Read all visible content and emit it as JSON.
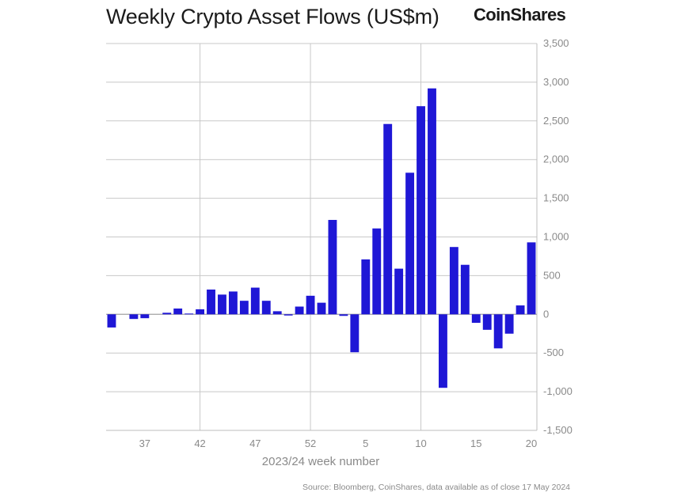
{
  "header": {
    "title": "Weekly Crypto Asset Flows (US$m)",
    "brand": "CoinShares"
  },
  "footer": {
    "source": "Source: Bloomberg, CoinShares, data available as of close 17 May 2024"
  },
  "chart_data": {
    "type": "bar",
    "title": "Weekly Crypto Asset Flows (US$m)",
    "xlabel": "2023/24 week number",
    "ylabel": "",
    "ylim": [
      -1500,
      3500
    ],
    "yticks": [
      3500,
      3000,
      2500,
      2000,
      1500,
      1000,
      500,
      0,
      -500,
      -1000,
      -1500
    ],
    "ytick_labels": [
      "3,500",
      "3,000",
      "2,500",
      "2,000",
      "1,500",
      "1,000",
      "500",
      "0",
      "-500",
      "-1,000",
      "-1,500"
    ],
    "categories": [
      "34",
      "35",
      "36",
      "37",
      "38",
      "39",
      "40",
      "41",
      "42",
      "43",
      "44",
      "45",
      "46",
      "47",
      "48",
      "49",
      "50",
      "51",
      "52",
      "1",
      "2",
      "3",
      "4",
      "5",
      "6",
      "7",
      "8",
      "9",
      "10",
      "11",
      "12",
      "13",
      "14",
      "15",
      "16",
      "17",
      "18",
      "19",
      "20"
    ],
    "x_tick_labels": [
      "37",
      "42",
      "47",
      "52",
      "5",
      "10",
      "15",
      "20"
    ],
    "values": [
      -170,
      0,
      -60,
      -50,
      0,
      20,
      75,
      10,
      65,
      320,
      255,
      295,
      175,
      345,
      175,
      40,
      -15,
      100,
      240,
      150,
      1220,
      -20,
      -490,
      710,
      1110,
      2460,
      590,
      1830,
      2690,
      2920,
      -950,
      870,
      640,
      -110,
      -200,
      -440,
      -250,
      115,
      930
    ],
    "bar_color": "#1f17d6",
    "grid": true
  }
}
